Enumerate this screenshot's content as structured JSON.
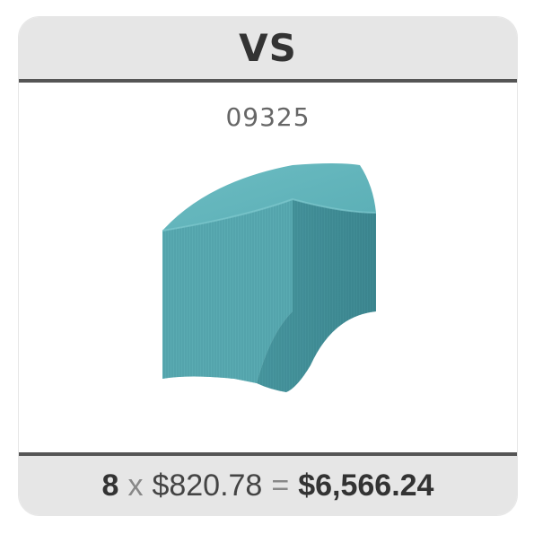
{
  "header": {
    "brand": "VS"
  },
  "product": {
    "sku": "09325",
    "image_icon": "curved-ottoman-icon",
    "color": "#5aa9b0"
  },
  "footer": {
    "quantity": "8",
    "multiply_symbol": "x",
    "unit_price": "$820.78",
    "equals_symbol": "=",
    "total": "$6,566.24"
  }
}
